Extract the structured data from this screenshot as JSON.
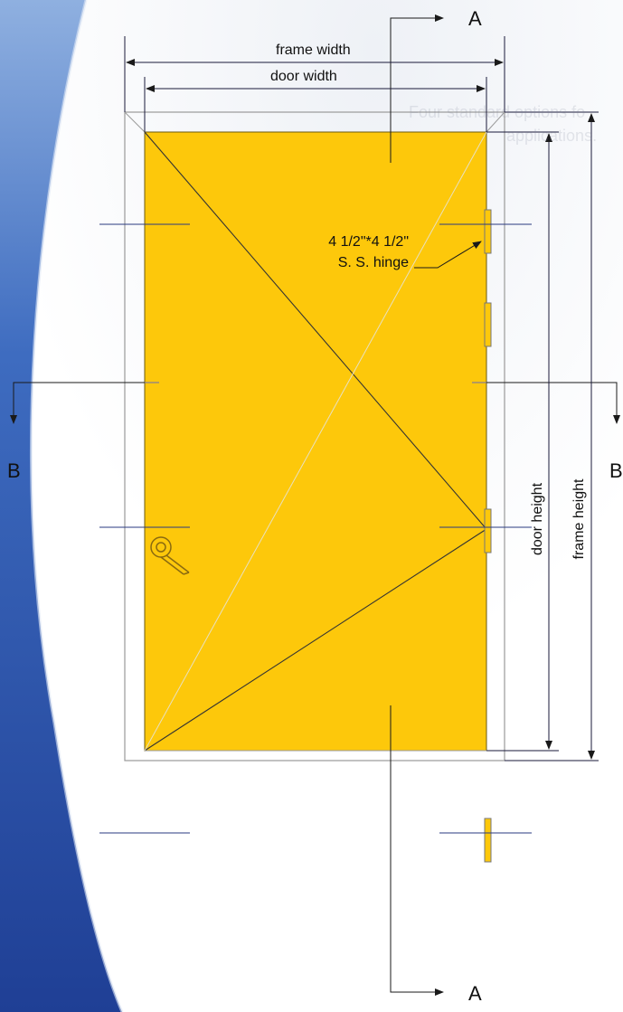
{
  "labels": {
    "frame_width": "frame width",
    "door_width": "door width",
    "door_height": "door height",
    "frame_height": "frame height",
    "hinge_line1": "4 1/2\"*4 1/2\"",
    "hinge_line2": "S. S. hinge",
    "section_a_top": "A",
    "section_a_bottom": "A",
    "section_b_left": "B",
    "section_b_right": "B"
  },
  "background_text": {
    "line1": "Four standard options fo",
    "line2": "applications."
  },
  "colors": {
    "door_fill": "#FDC80B",
    "frame_line": "#8a8a8a",
    "dim_line": "#1a1a3a",
    "section_line": "#1a1a1a",
    "swing_line": "#333333",
    "accent_blue": "#2a4fa0",
    "hardware": "#b8860b"
  },
  "icons": [
    "door-handle-icon",
    "hinge-icon"
  ]
}
